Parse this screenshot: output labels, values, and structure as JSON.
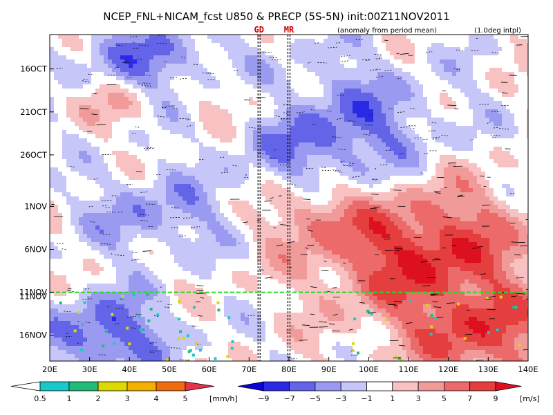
{
  "chart_data": {
    "type": "heatmap",
    "title": "NCEP_FNL+NICAM_fcst U850 & PRECP (5S-5N) init:00Z11NOV2011",
    "subtitle": "(anomaly from period mean)",
    "note": "(1.0deg intpl)",
    "x_ticks": [
      "20E",
      "30E",
      "40E",
      "50E",
      "60E",
      "70E",
      "80E",
      "90E",
      "100E",
      "110E",
      "120E",
      "130E",
      "140E"
    ],
    "x_range": [
      20,
      140
    ],
    "y_ticks": [
      "16OCT",
      "21OCT",
      "26OCT",
      "1NOV",
      "6NOV",
      "11NOV",
      "16NOV"
    ],
    "y_range_days": [
      "12OCT2011",
      "19NOV2011"
    ],
    "y_reversed": true,
    "forecast_start": "11NOV",
    "markers": [
      {
        "label": "GD",
        "lon": 72.5
      },
      {
        "label": "MR",
        "lon": 80
      }
    ],
    "precip_colorbar": {
      "label": "[mm/h]",
      "ticks": [
        "0.5",
        "1",
        "2",
        "3",
        "4",
        "5"
      ],
      "colors": [
        "#ffffff",
        "#19c8c8",
        "#22bb77",
        "#ddd800",
        "#f4b000",
        "#f06c10",
        "#e8324a"
      ]
    },
    "wind_colorbar": {
      "label": "[m/s]",
      "ticks": [
        "−9",
        "−7",
        "−5",
        "−3",
        "−1",
        "1",
        "3",
        "5",
        "7",
        "9"
      ],
      "colors": [
        "#0c00d8",
        "#2a2ae6",
        "#6464e8",
        "#9a9af0",
        "#c6c6f8",
        "#ffffff",
        "#f8c2c2",
        "#f09a9a",
        "#ec6a6a",
        "#e43e3e",
        "#dd1020"
      ]
    }
  }
}
